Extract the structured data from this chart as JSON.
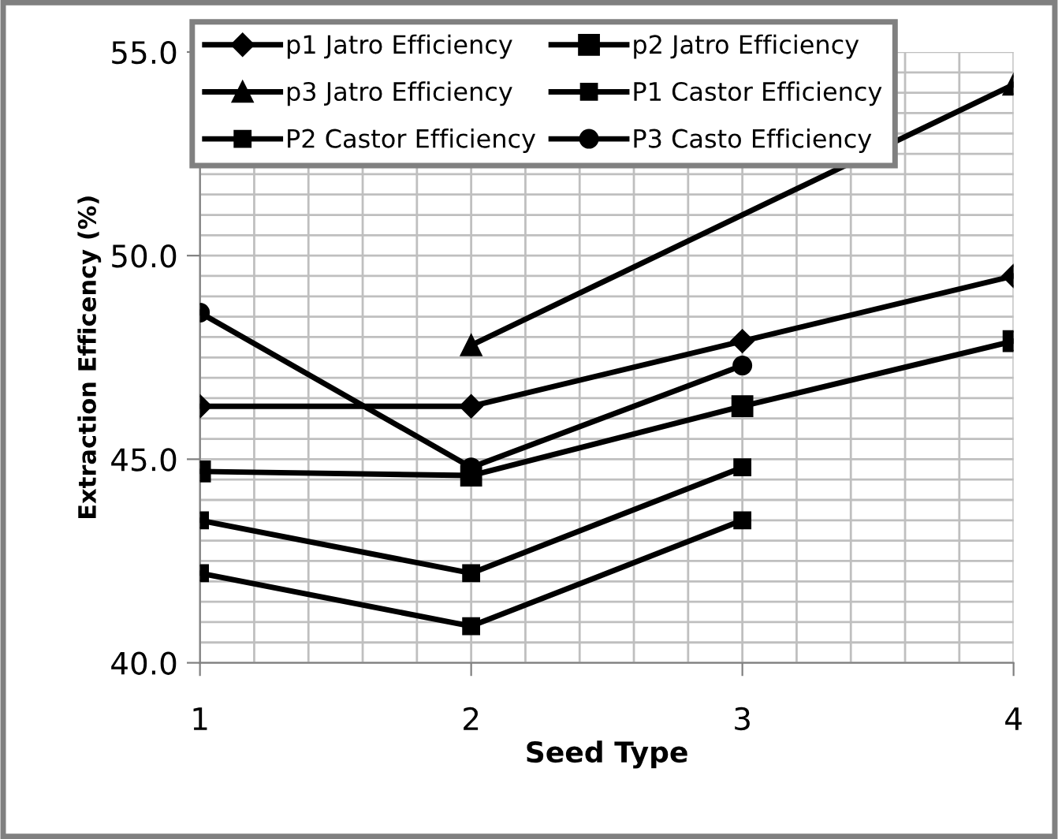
{
  "chart_data": {
    "type": "line",
    "xlabel": "Seed Type",
    "ylabel": "Extraction Efficency (%)",
    "xlim": [
      1,
      4
    ],
    "xticks": [
      1,
      2,
      3,
      4
    ],
    "ylim": [
      40,
      55
    ],
    "yticks": [
      {
        "value": 40,
        "label": "40.0"
      },
      {
        "value": 45,
        "label": "45.0"
      },
      {
        "value": 50,
        "label": "50.0"
      },
      {
        "value": 55,
        "label": "55.0"
      }
    ],
    "grid": true,
    "legend": "top",
    "series": [
      {
        "name": "p1 Jatro Efficiency",
        "color": "#000000",
        "marker": "diamond",
        "x": [
          1,
          2,
          3,
          4
        ],
        "values": [
          46.3,
          46.3,
          47.9,
          49.5
        ]
      },
      {
        "name": "p2 Jatro Efficiency",
        "color": "#000000",
        "marker": "square",
        "x": [
          1,
          2,
          3,
          4
        ],
        "values": [
          44.7,
          44.6,
          46.3,
          47.9
        ]
      },
      {
        "name": "p3 Jatro Efficiency",
        "color": "#000000",
        "marker": "triangle",
        "x": [
          2,
          4
        ],
        "values": [
          47.8,
          54.2
        ]
      },
      {
        "name": "P1 Castor Efficiency",
        "color": "#000000",
        "marker": "square",
        "x": [
          1,
          2,
          3
        ],
        "values": [
          43.5,
          42.2,
          44.8
        ]
      },
      {
        "name": "P2 Castor Efficiency",
        "color": "#000000",
        "marker": "square",
        "x": [
          1,
          2,
          3
        ],
        "values": [
          42.2,
          40.9,
          43.5
        ]
      },
      {
        "name": "P3 Casto Efficiency",
        "color": "#000000",
        "marker": "circle",
        "x": [
          1,
          2,
          3
        ],
        "values": [
          48.6,
          44.8,
          47.3
        ]
      }
    ]
  }
}
